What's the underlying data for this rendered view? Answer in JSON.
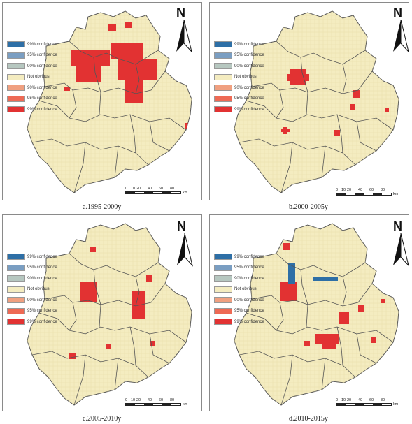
{
  "legend_items": [
    {
      "label": "99% confidence",
      "color": "#2e6fa6"
    },
    {
      "label": "95% confidence",
      "color": "#7a9ec2"
    },
    {
      "label": "90% confidence",
      "color": "#b6c7c0"
    },
    {
      "label": "Not obvious",
      "color": "#f4ecc0"
    },
    {
      "label": "90% confidence",
      "color": "#f0a080"
    },
    {
      "label": "95% confidence",
      "color": "#ee6a55"
    },
    {
      "label": "99% confidence",
      "color": "#e23232"
    }
  ],
  "north_label": "N",
  "scale_ticks": [
    "0",
    "10",
    "20",
    "40",
    "60",
    "80"
  ],
  "scale_unit": "km",
  "panels": [
    {
      "caption": "a.1995-2000y"
    },
    {
      "caption": "b.2000-2005y"
    },
    {
      "caption": "c.2005-2010y"
    },
    {
      "caption": "d.2010-2015y"
    }
  ],
  "colors": {
    "base": "#f4ecc0",
    "boundary": "#555555",
    "hot": "#e23232",
    "cold": "#2e6fa6"
  }
}
